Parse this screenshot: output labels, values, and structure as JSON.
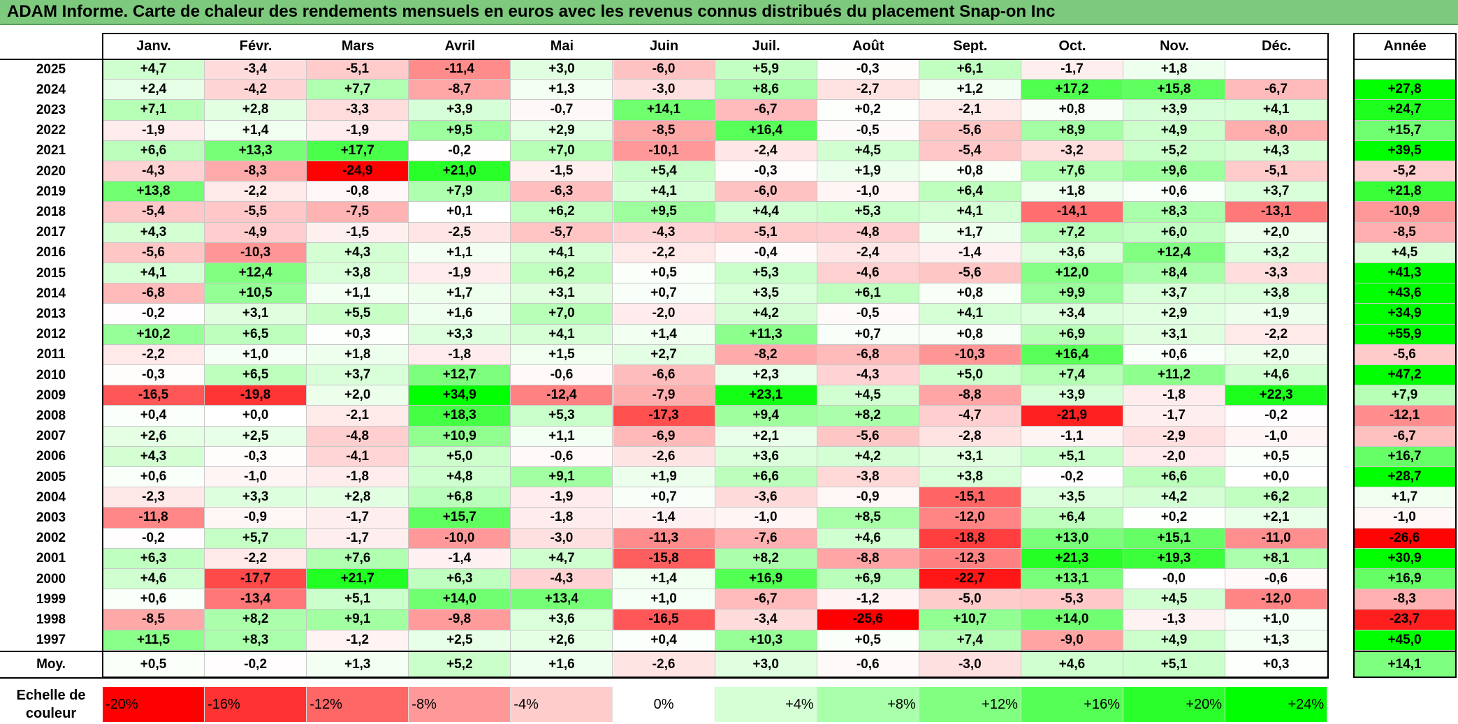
{
  "title": "ADAM Informe. Carte de chaleur des rendements mensuels en euros avec les revenus connus distribués du placement Snap-on Inc",
  "chart_data": {
    "type": "heatmap",
    "title": "ADAM Informe. Carte de chaleur des rendements mensuels en euros avec les revenus connus distribués du placement Snap-on Inc",
    "months": [
      "Janv.",
      "Févr.",
      "Mars",
      "Avril",
      "Mai",
      "Juin",
      "Juil.",
      "Août",
      "Sept.",
      "Oct.",
      "Nov.",
      "Déc."
    ],
    "year_header": "Année",
    "rows": [
      {
        "year": "2025",
        "values": [
          "+4,7",
          "-3,4",
          "-5,1",
          "-11,4",
          "+3,0",
          "-6,0",
          "+5,9",
          "-0,3",
          "+6,1",
          "-1,7",
          "+1,8",
          ""
        ],
        "annual": ""
      },
      {
        "year": "2024",
        "values": [
          "+2,4",
          "-4,2",
          "+7,7",
          "-8,7",
          "+1,3",
          "-3,0",
          "+8,6",
          "-2,7",
          "+1,2",
          "+17,2",
          "+15,8",
          "-6,7"
        ],
        "annual": "+27,8"
      },
      {
        "year": "2023",
        "values": [
          "+7,1",
          "+2,8",
          "-3,3",
          "+3,9",
          "-0,7",
          "+14,1",
          "-6,7",
          "+0,2",
          "-2,1",
          "+0,8",
          "+3,9",
          "+4,1"
        ],
        "annual": "+24,7"
      },
      {
        "year": "2022",
        "values": [
          "-1,9",
          "+1,4",
          "-1,9",
          "+9,5",
          "+2,9",
          "-8,5",
          "+16,4",
          "-0,5",
          "-5,6",
          "+8,9",
          "+4,9",
          "-8,0"
        ],
        "annual": "+15,7"
      },
      {
        "year": "2021",
        "values": [
          "+6,6",
          "+13,3",
          "+17,7",
          "-0,2",
          "+7,0",
          "-10,1",
          "-2,4",
          "+4,5",
          "-5,4",
          "-3,2",
          "+5,2",
          "+4,3"
        ],
        "annual": "+39,5"
      },
      {
        "year": "2020",
        "values": [
          "-4,3",
          "-8,3",
          "-24,9",
          "+21,0",
          "-1,5",
          "+5,4",
          "-0,3",
          "+1,9",
          "+0,8",
          "+7,6",
          "+9,6",
          "-5,1"
        ],
        "annual": "-5,2"
      },
      {
        "year": "2019",
        "values": [
          "+13,8",
          "-2,2",
          "-0,8",
          "+7,9",
          "-6,3",
          "+4,1",
          "-6,0",
          "-1,0",
          "+6,4",
          "+1,8",
          "+0,6",
          "+3,7"
        ],
        "annual": "+21,8"
      },
      {
        "year": "2018",
        "values": [
          "-5,4",
          "-5,5",
          "-7,5",
          "+0,1",
          "+6,2",
          "+9,5",
          "+4,4",
          "+5,3",
          "+4,1",
          "-14,1",
          "+8,3",
          "-13,1"
        ],
        "annual": "-10,9"
      },
      {
        "year": "2017",
        "values": [
          "+4,3",
          "-4,9",
          "-1,5",
          "-2,5",
          "-5,7",
          "-4,3",
          "-5,1",
          "-4,8",
          "+1,7",
          "+7,2",
          "+6,0",
          "+2,0"
        ],
        "annual": "-8,5"
      },
      {
        "year": "2016",
        "values": [
          "-5,6",
          "-10,3",
          "+4,3",
          "+1,1",
          "+4,1",
          "-2,2",
          "-0,4",
          "-2,4",
          "-1,4",
          "+3,6",
          "+12,4",
          "+3,2"
        ],
        "annual": "+4,5"
      },
      {
        "year": "2015",
        "values": [
          "+4,1",
          "+12,4",
          "+3,8",
          "-1,9",
          "+6,2",
          "+0,5",
          "+5,3",
          "-4,6",
          "-5,6",
          "+12,0",
          "+8,4",
          "-3,3"
        ],
        "annual": "+41,3"
      },
      {
        "year": "2014",
        "values": [
          "-6,8",
          "+10,5",
          "+1,1",
          "+1,7",
          "+3,1",
          "+0,7",
          "+3,5",
          "+6,1",
          "+0,8",
          "+9,9",
          "+3,7",
          "+3,8"
        ],
        "annual": "+43,6"
      },
      {
        "year": "2013",
        "values": [
          "-0,2",
          "+3,1",
          "+5,5",
          "+1,6",
          "+7,0",
          "-2,0",
          "+4,2",
          "-0,5",
          "+4,1",
          "+3,4",
          "+2,9",
          "+1,9"
        ],
        "annual": "+34,9"
      },
      {
        "year": "2012",
        "values": [
          "+10,2",
          "+6,5",
          "+0,3",
          "+3,3",
          "+4,1",
          "+1,4",
          "+11,3",
          "+0,7",
          "+0,8",
          "+6,9",
          "+3,1",
          "-2,2"
        ],
        "annual": "+55,9"
      },
      {
        "year": "2011",
        "values": [
          "-2,2",
          "+1,0",
          "+1,8",
          "-1,8",
          "+1,5",
          "+2,7",
          "-8,2",
          "-6,8",
          "-10,3",
          "+16,4",
          "+0,6",
          "+2,0"
        ],
        "annual": "-5,6"
      },
      {
        "year": "2010",
        "values": [
          "-0,3",
          "+6,5",
          "+3,7",
          "+12,7",
          "-0,6",
          "-6,6",
          "+2,3",
          "-4,3",
          "+5,0",
          "+7,4",
          "+11,2",
          "+4,6"
        ],
        "annual": "+47,2"
      },
      {
        "year": "2009",
        "values": [
          "-16,5",
          "-19,8",
          "+2,0",
          "+34,9",
          "-12,4",
          "-7,9",
          "+23,1",
          "+4,5",
          "-8,8",
          "+3,9",
          "-1,8",
          "+22,3"
        ],
        "annual": "+7,9"
      },
      {
        "year": "2008",
        "values": [
          "+0,4",
          "+0,0",
          "-2,1",
          "+18,3",
          "+5,3",
          "-17,3",
          "+9,4",
          "+8,2",
          "-4,7",
          "-21,9",
          "-1,7",
          "-0,2"
        ],
        "annual": "-12,1"
      },
      {
        "year": "2007",
        "values": [
          "+2,6",
          "+2,5",
          "-4,8",
          "+10,9",
          "+1,1",
          "-6,9",
          "+2,1",
          "-5,6",
          "-2,8",
          "-1,1",
          "-2,9",
          "-1,0"
        ],
        "annual": "-6,7"
      },
      {
        "year": "2006",
        "values": [
          "+4,3",
          "-0,3",
          "-4,1",
          "+5,0",
          "-0,6",
          "-2,6",
          "+3,6",
          "+4,2",
          "+3,1",
          "+5,1",
          "-2,0",
          "+0,5"
        ],
        "annual": "+16,7"
      },
      {
        "year": "2005",
        "values": [
          "+0,6",
          "-1,0",
          "-1,8",
          "+4,8",
          "+9,1",
          "+1,9",
          "+6,6",
          "-3,8",
          "+3,8",
          "-0,2",
          "+6,6",
          "+0,0"
        ],
        "annual": "+28,7"
      },
      {
        "year": "2004",
        "values": [
          "-2,3",
          "+3,3",
          "+2,8",
          "+6,8",
          "-1,9",
          "+0,7",
          "-3,6",
          "-0,9",
          "-15,1",
          "+3,5",
          "+4,2",
          "+6,2"
        ],
        "annual": "+1,7"
      },
      {
        "year": "2003",
        "values": [
          "-11,8",
          "-0,9",
          "-1,7",
          "+15,7",
          "-1,8",
          "-1,4",
          "-1,0",
          "+8,5",
          "-12,0",
          "+6,4",
          "+0,2",
          "+2,1"
        ],
        "annual": "-1,0"
      },
      {
        "year": "2002",
        "values": [
          "-0,2",
          "+5,7",
          "-1,7",
          "-10,0",
          "-3,0",
          "-11,3",
          "-7,6",
          "+4,6",
          "-18,8",
          "+13,0",
          "+15,1",
          "-11,0"
        ],
        "annual": "-26,6"
      },
      {
        "year": "2001",
        "values": [
          "+6,3",
          "-2,2",
          "+7,6",
          "-1,4",
          "+4,7",
          "-15,8",
          "+8,2",
          "-8,8",
          "-12,3",
          "+21,3",
          "+19,3",
          "+8,1"
        ],
        "annual": "+30,9"
      },
      {
        "year": "2000",
        "values": [
          "+4,6",
          "-17,7",
          "+21,7",
          "+6,3",
          "-4,3",
          "+1,4",
          "+16,9",
          "+6,9",
          "-22,7",
          "+13,1",
          "-0,0",
          "-0,6"
        ],
        "annual": "+16,9"
      },
      {
        "year": "1999",
        "values": [
          "+0,6",
          "-13,4",
          "+5,1",
          "+14,0",
          "+13,4",
          "+1,0",
          "-6,7",
          "-1,2",
          "-5,0",
          "-5,3",
          "+4,5",
          "-12,0"
        ],
        "annual": "-8,3"
      },
      {
        "year": "1998",
        "values": [
          "-8,5",
          "+8,2",
          "+9,1",
          "-9,8",
          "+3,6",
          "-16,5",
          "-3,4",
          "-25,6",
          "+10,7",
          "+14,0",
          "-1,3",
          "+1,0"
        ],
        "annual": "-23,7"
      },
      {
        "year": "1997",
        "values": [
          "+11,5",
          "+8,3",
          "-1,2",
          "+2,5",
          "+2,6",
          "+0,4",
          "+10,3",
          "+0,5",
          "+7,4",
          "-9,0",
          "+4,9",
          "+1,3"
        ],
        "annual": "+45,0"
      }
    ],
    "average": {
      "label": "Moy.",
      "values": [
        "+0,5",
        "-0,2",
        "+1,3",
        "+5,2",
        "+1,6",
        "-2,6",
        "+3,0",
        "-0,6",
        "-3,0",
        "+4,6",
        "+5,1",
        "+0,3"
      ],
      "annual": "+14,1"
    },
    "scale": {
      "label": "Echelle de couleur",
      "steps": [
        "-20%",
        "-16%",
        "-12%",
        "-8%",
        "-4%",
        "0%",
        "+4%",
        "+8%",
        "+12%",
        "+16%",
        "+20%",
        "+24%"
      ],
      "values": [
        -20,
        -16,
        -12,
        -8,
        -4,
        0,
        4,
        8,
        12,
        16,
        20,
        24
      ]
    },
    "colors": {
      "negative": "#ff0000",
      "neutral": "#ffffff",
      "positive": "#00ff00",
      "title_bg": "#7dc97d"
    }
  }
}
